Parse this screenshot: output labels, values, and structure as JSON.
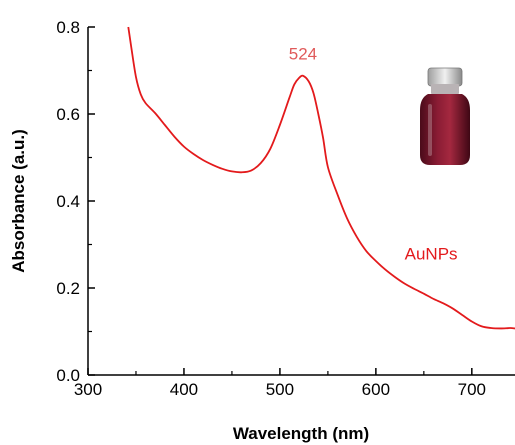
{
  "chart_data": {
    "type": "line",
    "title": "",
    "xlabel": "Wavelength (nm)",
    "ylabel": "Absorbance (a.u.)",
    "xlim": [
      300,
      745
    ],
    "ylim": [
      0,
      0.8
    ],
    "x_ticks": [
      300,
      400,
      500,
      600,
      700
    ],
    "y_ticks": [
      0.0,
      0.2,
      0.4,
      0.6,
      0.8
    ],
    "x_tick_labels": [
      "300",
      "400",
      "500",
      "600",
      "700"
    ],
    "y_tick_labels": [
      "0.0",
      "0.2",
      "0.4",
      "0.6",
      "0.8"
    ],
    "grid": false,
    "series": [
      {
        "name": "AuNPs",
        "color": "#e31a1c",
        "x": [
          342,
          345,
          350,
          355,
          360,
          370,
          380,
          390,
          400,
          410,
          420,
          430,
          440,
          450,
          460,
          470,
          480,
          490,
          500,
          510,
          515,
          520,
          524,
          530,
          535,
          540,
          545,
          550,
          560,
          570,
          580,
          590,
          600,
          610,
          620,
          630,
          640,
          650,
          660,
          670,
          680,
          690,
          700,
          710,
          720,
          730,
          740,
          745
        ],
        "y": [
          0.8,
          0.755,
          0.685,
          0.645,
          0.625,
          0.602,
          0.575,
          0.548,
          0.525,
          0.508,
          0.494,
          0.483,
          0.474,
          0.468,
          0.466,
          0.47,
          0.487,
          0.52,
          0.575,
          0.638,
          0.668,
          0.683,
          0.688,
          0.675,
          0.648,
          0.6,
          0.545,
          0.478,
          0.415,
          0.36,
          0.318,
          0.285,
          0.262,
          0.242,
          0.225,
          0.21,
          0.198,
          0.187,
          0.175,
          0.165,
          0.153,
          0.138,
          0.123,
          0.112,
          0.108,
          0.107,
          0.108,
          0.107
        ]
      }
    ],
    "annotations": [
      {
        "text": "524",
        "x": 524,
        "y": 0.725,
        "color": "#e05a5a"
      },
      {
        "text": "AuNPs",
        "x": 630,
        "y": 0.265,
        "color": "#e31a1c"
      }
    ],
    "inset": {
      "kind": "photo",
      "depicts": "vial of red gold nanoparticle solution"
    }
  }
}
